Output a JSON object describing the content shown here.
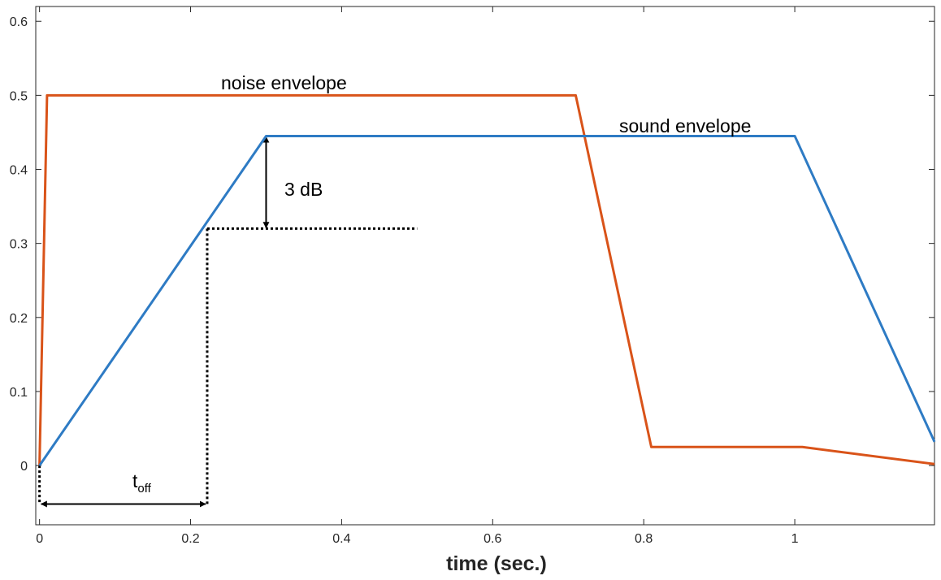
{
  "chart_data": {
    "type": "line",
    "xlabel": "time (sec.)",
    "ylabel": "",
    "xlim": [
      -0.005,
      1.185
    ],
    "ylim": [
      -0.08,
      0.62
    ],
    "xticks": [
      0,
      0.2,
      0.4,
      0.6,
      0.8,
      1
    ],
    "xtick_labels": [
      "0",
      "0.2",
      "0.4",
      "0.6",
      "0.8",
      "1"
    ],
    "yticks": [
      0,
      0.1,
      0.2,
      0.3,
      0.4,
      0.5,
      0.6
    ],
    "ytick_labels": [
      "0",
      "0.1",
      "0.2",
      "0.3",
      "0.4",
      "0.5",
      "0.6"
    ],
    "grid": false,
    "series": [
      {
        "name": "noise envelope",
        "color": "#d95319",
        "x": [
          0,
          0.01,
          0.71,
          0.81,
          1.01,
          1.185
        ],
        "y": [
          0,
          0.5,
          0.5,
          0.025,
          0.025,
          0.002
        ]
      },
      {
        "name": "sound envelope",
        "color": "#2e7bc4",
        "x": [
          0,
          0.3,
          1.0,
          1.185
        ],
        "y": [
          0,
          0.445,
          0.445,
          0.032
        ]
      }
    ],
    "annotations": {
      "noise_label": "noise envelope",
      "sound_label": "sound envelope",
      "db_label": "3 dB",
      "toff_main": "t",
      "toff_sub": "off"
    },
    "reference_lines": {
      "level_y": 0.32,
      "level_x_end": 0.5,
      "toff_x": 0.222,
      "arrow_y": -0.052,
      "db_arrow_x": 0.3,
      "db_arrow_top": 0.445,
      "db_arrow_bottom": 0.32
    }
  }
}
